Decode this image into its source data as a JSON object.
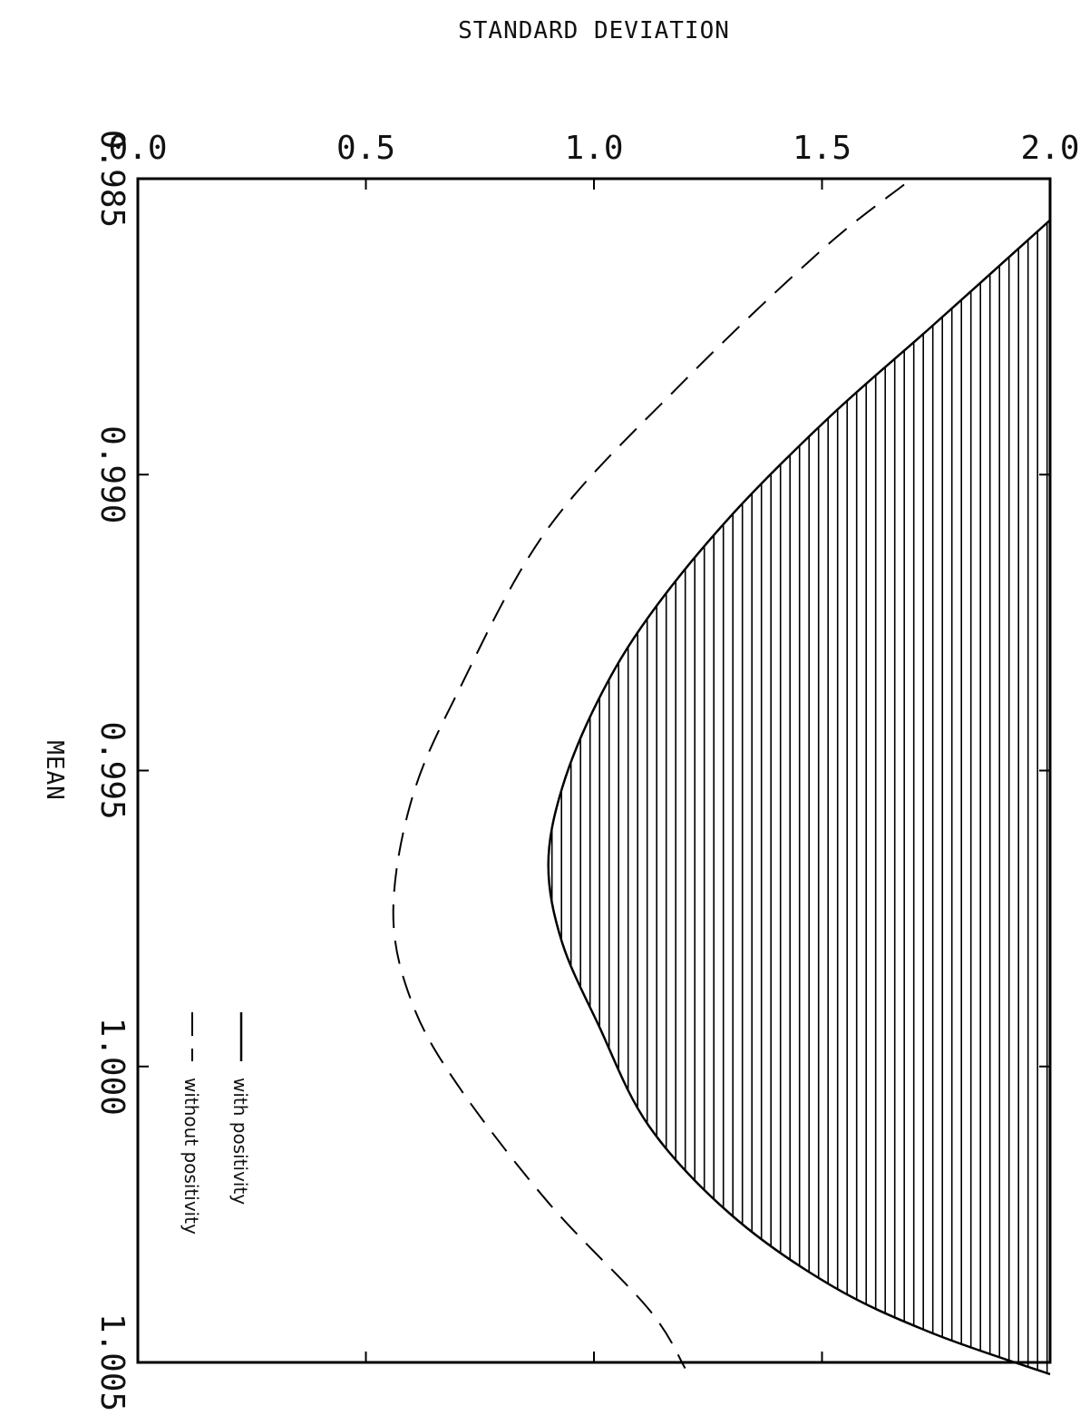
{
  "chart_data": {
    "type": "line",
    "xlabel": "Standard Deviation",
    "ylabel": "Mean",
    "x_axis_position": "top",
    "y_axis_orientation": "rotated-90-clockwise",
    "xlim": [
      0.0,
      2.0
    ],
    "ylim": [
      0.985,
      1.005
    ],
    "x_ticks": [
      "0.0",
      "0.5",
      "1.0",
      "1.5",
      "2.0"
    ],
    "y_ticks": [
      "0.985",
      "0.990",
      "0.995",
      "1.000",
      "1.005"
    ],
    "grid": false,
    "legend_position": "bottom-left",
    "series": [
      {
        "name": "with positivity",
        "style": "solid",
        "fill": "vertical-hatch",
        "x": [
          2.0,
          1.74,
          1.52,
          1.3,
          1.12,
          1.01,
          0.93,
          0.9,
          0.93,
          1.01,
          1.12,
          1.3,
          1.52,
          1.74,
          2.0
        ],
        "y": [
          0.9857,
          0.9875,
          0.989,
          0.9907,
          0.9924,
          0.9938,
          0.9953,
          0.9966,
          0.9979,
          0.9993,
          1.001,
          1.0025,
          1.0037,
          1.0045,
          1.0052
        ]
      },
      {
        "name": "without positivity",
        "style": "dashed",
        "x": [
          1.68,
          1.5,
          1.2,
          0.9,
          0.7,
          0.6,
          0.56,
          0.6,
          0.7,
          0.9,
          1.12,
          1.2
        ],
        "y": [
          0.9851,
          0.9862,
          0.9884,
          0.9909,
          0.9937,
          0.9955,
          0.9974,
          0.9989,
          1.0003,
          1.0023,
          1.0041,
          1.0051
        ]
      }
    ]
  }
}
